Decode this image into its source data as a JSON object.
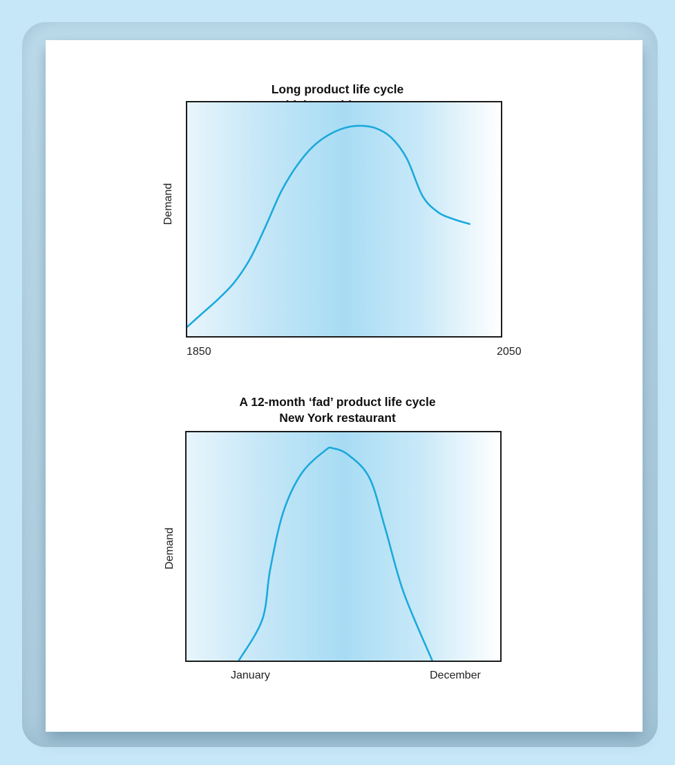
{
  "chart_data": [
    {
      "type": "line",
      "title": "Long product life cycle",
      "subtitle": "British seaside resorts",
      "ylabel": "Demand",
      "xlabel": "",
      "x_ticks": [
        "1850",
        "2050"
      ],
      "xlim": [
        1850,
        2050
      ],
      "ylim": [
        0,
        100
      ],
      "grid": false,
      "color": "#1aa9dc",
      "series": [
        {
          "x": [
            1850,
            1860,
            1870,
            1880,
            1890,
            1900,
            1910,
            1920,
            1930,
            1940,
            1950,
            1960,
            1970,
            1980,
            1990,
            2000,
            2010,
            2020,
            2030
          ],
          "values": [
            4,
            10,
            16,
            23,
            33,
            47,
            62,
            73,
            81,
            86,
            89,
            90,
            89,
            85,
            76,
            60,
            53,
            50,
            48
          ]
        }
      ]
    },
    {
      "type": "line",
      "title": "A 12-month ‘fad’ product life cycle",
      "subtitle": "New York restaurant",
      "ylabel": "Demand",
      "xlabel": "",
      "x_ticks": [
        "January",
        "December"
      ],
      "xlim": [
        0,
        12
      ],
      "ylim": [
        0,
        100
      ],
      "grid": false,
      "color": "#1aa9dc",
      "series": [
        {
          "x": [
            2.0,
            2.9,
            3.2,
            3.7,
            4.4,
            5.3,
            5.6,
            6.2,
            7.0,
            7.6,
            8.3,
            9.4
          ],
          "values": [
            0,
            18,
            40,
            65,
            82,
            92,
            93,
            90,
            80,
            58,
            30,
            0
          ]
        }
      ]
    }
  ]
}
